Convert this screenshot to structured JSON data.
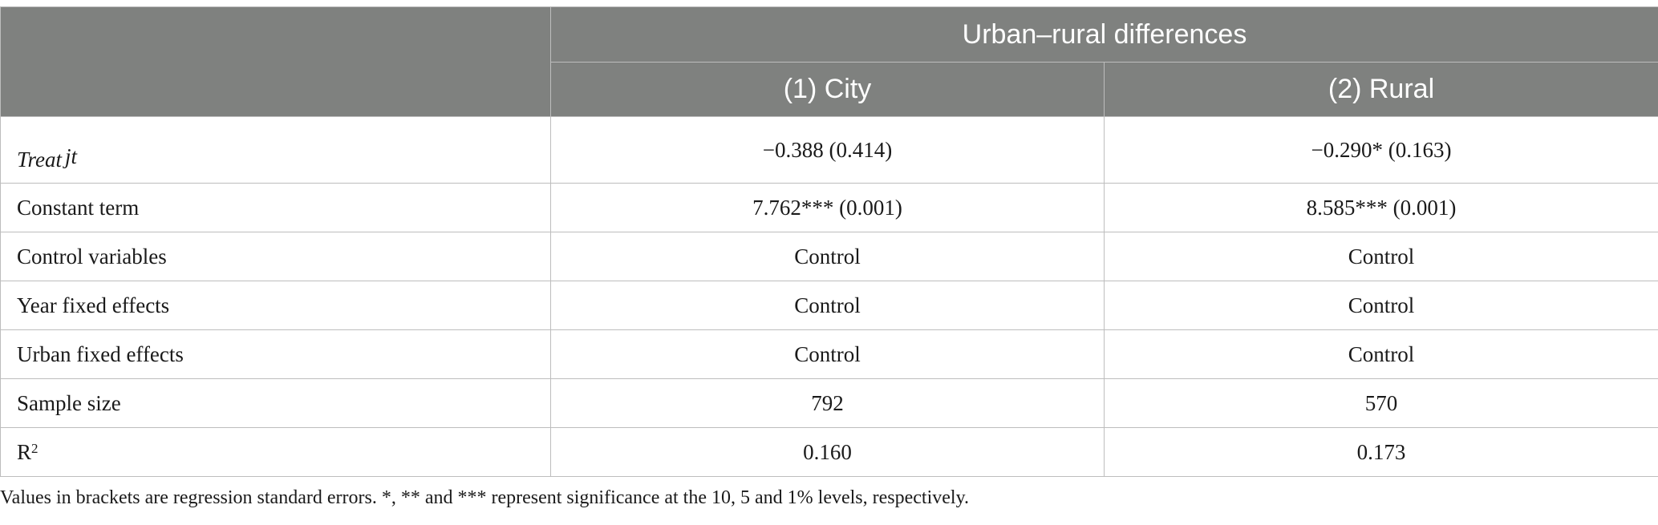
{
  "table": {
    "group_header": "Urban–rural differences",
    "columns": [
      "(1) City",
      "(2) Rural"
    ],
    "rows": [
      {
        "label": "Treat",
        "label_sub": "jt",
        "values": [
          "−0.388 (0.414)",
          "−0.290* (0.163)"
        ]
      },
      {
        "label": "Constant term",
        "values": [
          "7.762*** (0.001)",
          "8.585*** (0.001)"
        ]
      },
      {
        "label": "Control variables",
        "values": [
          "Control",
          "Control"
        ]
      },
      {
        "label": "Year fixed effects",
        "values": [
          "Control",
          "Control"
        ]
      },
      {
        "label": "Urban fixed effects",
        "values": [
          "Control",
          "Control"
        ]
      },
      {
        "label": "Sample size",
        "values": [
          "792",
          "570"
        ]
      },
      {
        "label": "R",
        "label_sup": "2",
        "values": [
          "0.160",
          "0.173"
        ]
      }
    ]
  },
  "note": "Values in brackets are regression standard errors. *, ** and *** represent significance at the 10, 5 and 1% levels, respectively.",
  "colors": {
    "header_bg": "#7f817f",
    "header_text": "#ffffff",
    "border": "#bdbdbd"
  }
}
